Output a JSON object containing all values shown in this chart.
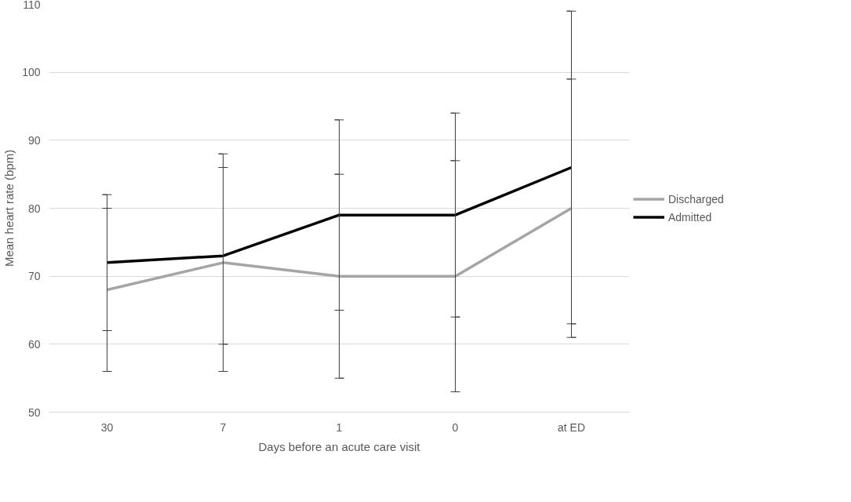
{
  "chart_data": {
    "type": "line",
    "xlabel": "Days before an acute care visit",
    "ylabel": "Mean heart rate (bpm)",
    "categories": [
      "30",
      "7",
      "1",
      "0",
      "at ED"
    ],
    "series": [
      {
        "name": "Discharged",
        "color": "#a5a5a5",
        "values": [
          68,
          72,
          70,
          70,
          80
        ],
        "errors": [
          12,
          16,
          15,
          17,
          19
        ]
      },
      {
        "name": "Admitted",
        "color": "#000000",
        "values": [
          72,
          73,
          79,
          79,
          86
        ],
        "errors": [
          10,
          13,
          14,
          15,
          23
        ]
      }
    ],
    "ylim": [
      50,
      110
    ],
    "yticks": [
      50,
      60,
      70,
      80,
      90,
      100,
      110
    ],
    "grid": "y",
    "legend": "right",
    "marker": "none",
    "line_style": "solid"
  }
}
